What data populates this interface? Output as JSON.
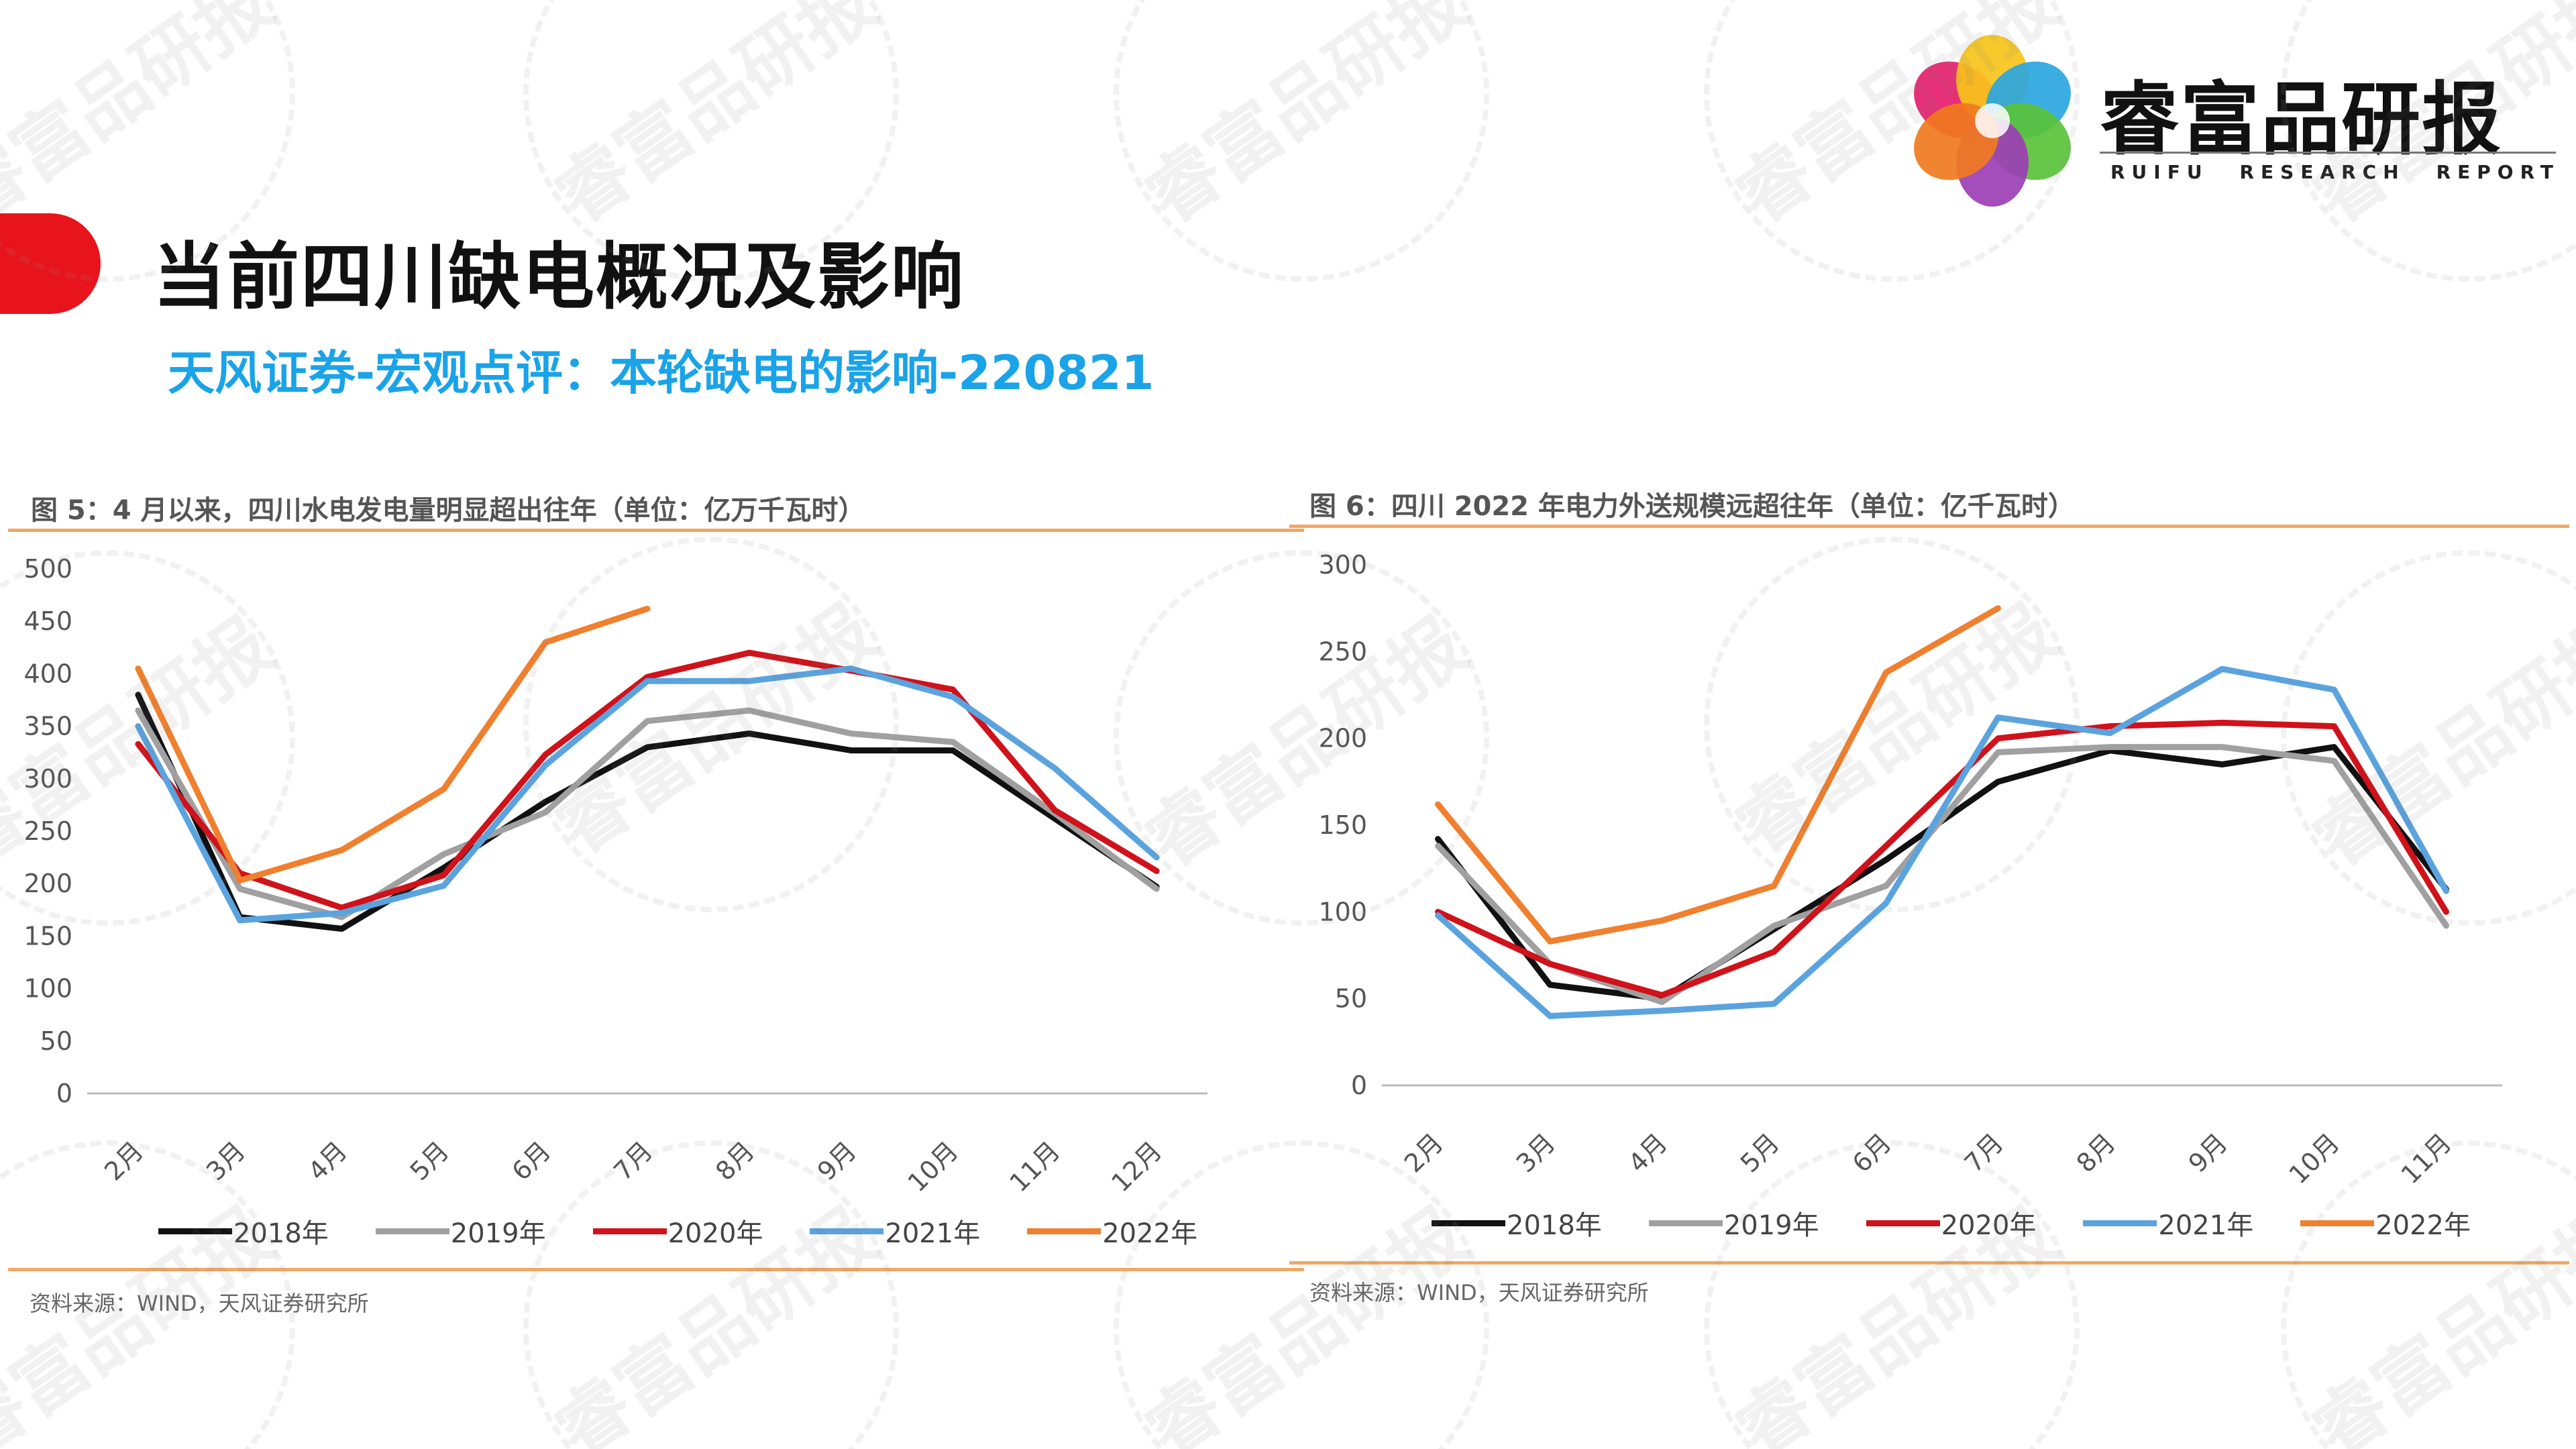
{
  "header": {
    "title": "当前四川缺电概况及影响",
    "subtitle": "天风证券-宏观点评：本轮缺电的影响-220821"
  },
  "logo": {
    "name": "睿富品研报",
    "tagline": [
      "RUIFU",
      "RESEARCH",
      "REPORT"
    ],
    "petal_colors": [
      "#e61e6e",
      "#f7c41b",
      "#2aa6e0",
      "#5ac23a",
      "#9b3fb5",
      "#f07a1e"
    ]
  },
  "watermark": {
    "text": "睿富品研报"
  },
  "colors": {
    "accent_red": "#e8141c",
    "subtitle_blue": "#1aa3e8",
    "rule_orange": "#f0a868"
  },
  "chart_data": [
    {
      "type": "line",
      "title": "图 5：4 月以来，四川水电发电量明显超出往年（单位：亿万千瓦时）",
      "source": "资料来源：WIND，天风证券研究所",
      "categories": [
        "2月",
        "3月",
        "4月",
        "5月",
        "6月",
        "7月",
        "8月",
        "9月",
        "10月",
        "11月",
        "12月"
      ],
      "ylim": [
        0,
        500
      ],
      "yticks": [
        0,
        50,
        100,
        150,
        200,
        250,
        300,
        350,
        400,
        450,
        500
      ],
      "grid": false,
      "legend_position": "bottom",
      "series": [
        {
          "name": "2018年",
          "color": "#111111",
          "values": [
            380,
            168,
            157,
            215,
            278,
            330,
            343,
            327,
            327,
            262,
            197
          ]
        },
        {
          "name": "2019年",
          "color": "#a0a0a0",
          "values": [
            365,
            195,
            168,
            228,
            268,
            355,
            365,
            343,
            335,
            267,
            195
          ]
        },
        {
          "name": "2020年",
          "color": "#d0121b",
          "values": [
            333,
            210,
            177,
            208,
            323,
            397,
            420,
            403,
            385,
            270,
            212
          ]
        },
        {
          "name": "2021年",
          "color": "#5aa3df",
          "values": [
            350,
            165,
            172,
            198,
            313,
            393,
            393,
            405,
            378,
            310,
            225
          ]
        },
        {
          "name": "2022年",
          "color": "#f07f2e",
          "values": [
            405,
            203,
            232,
            290,
            430,
            462,
            null,
            null,
            null,
            null,
            null
          ]
        }
      ]
    },
    {
      "type": "line",
      "title": "图 6：四川 2022 年电力外送规模远超往年（单位：亿千瓦时）",
      "source": "资料来源：WIND，天风证券研究所",
      "categories": [
        "2月",
        "3月",
        "4月",
        "5月",
        "6月",
        "7月",
        "8月",
        "9月",
        "10月",
        "11月"
      ],
      "ylim": [
        0,
        300
      ],
      "yticks": [
        0,
        50,
        100,
        150,
        200,
        250,
        300
      ],
      "grid": false,
      "legend_position": "bottom",
      "series": [
        {
          "name": "2018年",
          "color": "#111111",
          "values": [
            142,
            58,
            50,
            90,
            130,
            175,
            193,
            185,
            195,
            113
          ]
        },
        {
          "name": "2019年",
          "color": "#a0a0a0",
          "values": [
            138,
            70,
            48,
            92,
            115,
            192,
            195,
            195,
            187,
            92
          ]
        },
        {
          "name": "2020年",
          "color": "#d0121b",
          "values": [
            100,
            70,
            52,
            77,
            138,
            200,
            207,
            209,
            207,
            100
          ]
        },
        {
          "name": "2021年",
          "color": "#5aa3df",
          "values": [
            98,
            40,
            43,
            47,
            105,
            212,
            203,
            240,
            228,
            112
          ]
        },
        {
          "name": "2022年",
          "color": "#f07f2e",
          "values": [
            162,
            83,
            95,
            115,
            238,
            275,
            null,
            null,
            null,
            null
          ]
        }
      ]
    }
  ]
}
